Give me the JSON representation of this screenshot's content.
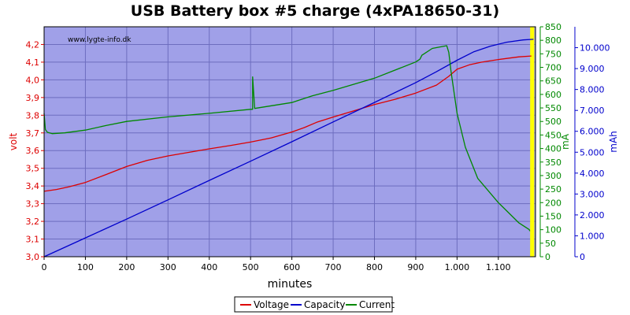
{
  "chart_data": {
    "type": "line",
    "title": "USB Battery box #5 charge (4xPA18650-31)",
    "watermark": "www.lygte-info.dk",
    "xlabel": "minutes",
    "xlim": [
      0,
      1190
    ],
    "x_ticks": [
      0,
      100,
      200,
      300,
      400,
      500,
      600,
      700,
      800,
      900,
      1000,
      1100
    ],
    "x_tick_labels": [
      "0",
      "100",
      "200",
      "300",
      "400",
      "500",
      "600",
      "700",
      "800",
      "900",
      "1.000",
      "1.100"
    ],
    "axes": {
      "volt": {
        "label": "volt",
        "color": "#dd0000",
        "side": "left",
        "lim": [
          3.0,
          4.3
        ],
        "ticks": [
          3.0,
          3.1,
          3.2,
          3.3,
          3.4,
          3.5,
          3.6,
          3.7,
          3.8,
          3.9,
          4.0,
          4.1,
          4.2
        ],
        "tick_labels": [
          "3,0",
          "3,1",
          "3,2",
          "3,3",
          "3,4",
          "3,5",
          "3,6",
          "3,7",
          "3,8",
          "3,9",
          "4,0",
          "4,1",
          "4,2"
        ]
      },
      "mA": {
        "label": "mA",
        "color": "#008800",
        "side": "right",
        "lim": [
          0,
          850
        ],
        "ticks": [
          0,
          50,
          100,
          150,
          200,
          250,
          300,
          350,
          400,
          450,
          500,
          550,
          600,
          650,
          700,
          750,
          800,
          850
        ],
        "tick_labels": [
          "0",
          "50",
          "100",
          "150",
          "200",
          "250",
          "300",
          "350",
          "400",
          "450",
          "500",
          "550",
          "600",
          "650",
          "700",
          "750",
          "800",
          "850"
        ]
      },
      "mAh": {
        "label": "mAh",
        "color": "#0000cc",
        "side": "right",
        "lim": [
          0,
          11000
        ],
        "ticks": [
          0,
          1000,
          2000,
          3000,
          4000,
          5000,
          6000,
          7000,
          8000,
          9000,
          10000
        ],
        "tick_labels": [
          "0",
          "1.000",
          "2.000",
          "3.000",
          "4.000",
          "5.000",
          "6.000",
          "7.000",
          "8.000",
          "9.000",
          "10.000"
        ]
      }
    },
    "grid": true,
    "background_color": "#a0a0e8",
    "legend_position": "bottom-center",
    "highlight_band": {
      "x_range": [
        1177,
        1187
      ],
      "color": "#ffff00"
    },
    "series": [
      {
        "name": "Voltage",
        "axis": "volt",
        "color": "#dd0000",
        "x": [
          0,
          30,
          60,
          100,
          150,
          200,
          250,
          300,
          350,
          400,
          450,
          500,
          550,
          600,
          630,
          660,
          700,
          750,
          800,
          850,
          900,
          950,
          980,
          1000,
          1030,
          1060,
          1100,
          1150,
          1180
        ],
        "y": [
          3.37,
          3.38,
          3.395,
          3.42,
          3.465,
          3.51,
          3.545,
          3.57,
          3.59,
          3.61,
          3.628,
          3.648,
          3.672,
          3.705,
          3.73,
          3.76,
          3.79,
          3.825,
          3.86,
          3.89,
          3.925,
          3.97,
          4.02,
          4.06,
          4.085,
          4.1,
          4.115,
          4.13,
          4.135
        ]
      },
      {
        "name": "Capacity",
        "axis": "mAh",
        "color": "#0000cc",
        "x": [
          0,
          100,
          200,
          300,
          400,
          500,
          600,
          700,
          800,
          900,
          950,
          1000,
          1040,
          1080,
          1120,
          1160,
          1185
        ],
        "y": [
          0,
          900,
          1800,
          2720,
          3650,
          4570,
          5500,
          6450,
          7380,
          8330,
          8850,
          9400,
          9800,
          10070,
          10260,
          10370,
          10400
        ]
      },
      {
        "name": "Current",
        "axis": "mA",
        "color": "#008800",
        "x": [
          0,
          3,
          8,
          20,
          50,
          100,
          150,
          200,
          300,
          400,
          500,
          505,
          505,
          510,
          600,
          650,
          700,
          800,
          900,
          910,
          915,
          920,
          940,
          975,
          980,
          985,
          1000,
          1020,
          1050,
          1100,
          1150,
          1175,
          1176
        ],
        "y": [
          530,
          470,
          460,
          455,
          458,
          468,
          485,
          500,
          517,
          530,
          545,
          545,
          665,
          548,
          570,
          595,
          615,
          660,
          720,
          730,
          745,
          750,
          770,
          780,
          755,
          690,
          530,
          405,
          290,
          200,
          125,
          100,
          95
        ]
      }
    ]
  }
}
